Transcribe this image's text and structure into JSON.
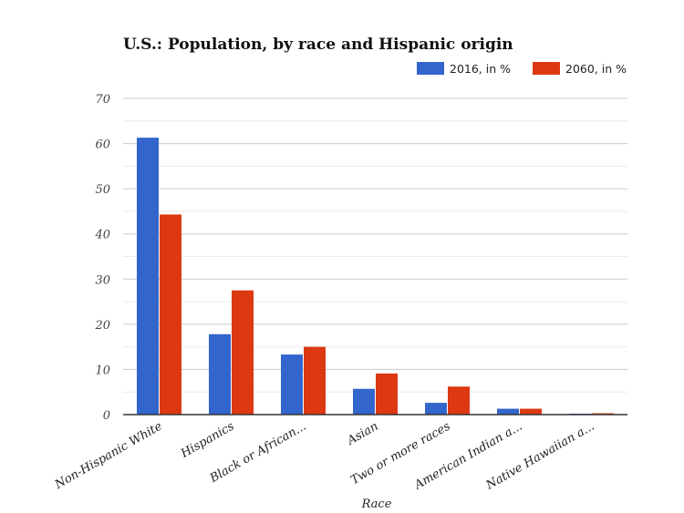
{
  "chart_data": {
    "type": "bar",
    "title": "U.S.: Population, by race and Hispanic origin",
    "xlabel": "Race",
    "ylabel": "",
    "ylim": [
      0,
      70
    ],
    "yticks": [
      0,
      10,
      20,
      30,
      40,
      50,
      60,
      70
    ],
    "grid": true,
    "legend_position": "top-right",
    "categories": [
      "Non-Hispanic White",
      "Hispanics",
      "Black or African...",
      "Asian",
      "Two or more races",
      "American Indian a...",
      "Native Hawaiian a..."
    ],
    "series": [
      {
        "name": "2016, in %",
        "color": "#3366cc",
        "values": [
          61.3,
          17.8,
          13.3,
          5.7,
          2.6,
          1.3,
          0.2
        ]
      },
      {
        "name": "2060, in %",
        "color": "#dc3912",
        "values": [
          44.3,
          27.5,
          15.0,
          9.1,
          6.2,
          1.3,
          0.3
        ]
      }
    ]
  }
}
